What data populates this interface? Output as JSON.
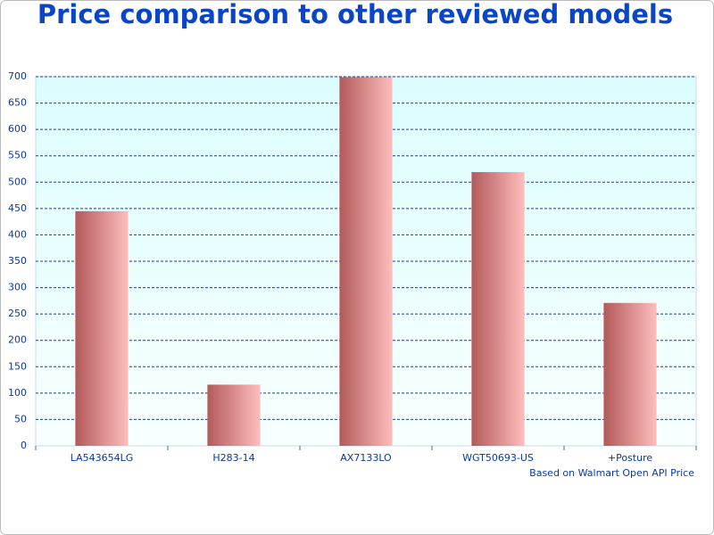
{
  "chart_data": {
    "type": "bar",
    "title": "Price comparison to other reviewed models",
    "note": "Based on Walmart Open API Price",
    "categories": [
      "LA543654LG",
      "H283-14",
      "AX7133LO",
      "WGT50693-US",
      "+Posture"
    ],
    "values": [
      445,
      116,
      699,
      519,
      271
    ],
    "color": [
      "#b35a5a",
      "#ffbdbd"
    ],
    "ylim": [
      0,
      700
    ],
    "yticks": [
      0,
      50,
      100,
      150,
      200,
      250,
      300,
      350,
      400,
      450,
      500,
      550,
      600,
      650,
      700
    ],
    "grid": true
  }
}
